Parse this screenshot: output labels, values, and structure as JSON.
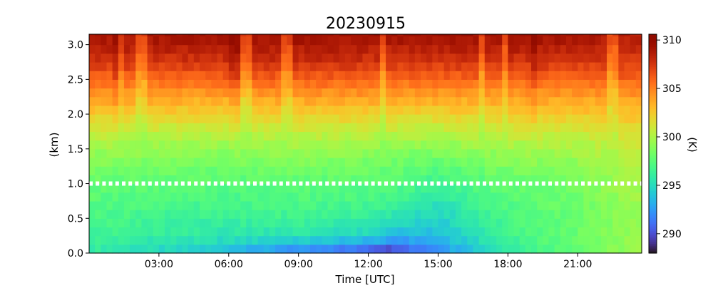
{
  "chart_data": {
    "type": "heatmap",
    "title": "20230915",
    "xlabel": "Time [UTC]",
    "ylabel": "(km)",
    "colorbar_label": "(K)",
    "colormap": "turbo",
    "x_range_hours": [
      0.0,
      23.75
    ],
    "x_ticks": [
      {
        "hour": 3,
        "label": "03:00"
      },
      {
        "hour": 6,
        "label": "06:00"
      },
      {
        "hour": 9,
        "label": "09:00"
      },
      {
        "hour": 12,
        "label": "12:00"
      },
      {
        "hour": 15,
        "label": "15:00"
      },
      {
        "hour": 18,
        "label": "18:00"
      },
      {
        "hour": 21,
        "label": "21:00"
      }
    ],
    "ylim": [
      0.0,
      3.15
    ],
    "y_ticks": [
      {
        "value": 0.0,
        "label": "0.0"
      },
      {
        "value": 0.5,
        "label": "0.5"
      },
      {
        "value": 1.0,
        "label": "1.0"
      },
      {
        "value": 1.5,
        "label": "1.5"
      },
      {
        "value": 2.0,
        "label": "2.0"
      },
      {
        "value": 2.5,
        "label": "2.5"
      },
      {
        "value": 3.0,
        "label": "3.0"
      }
    ],
    "color_range_K": [
      288,
      310.6
    ],
    "colorbar_ticks": [
      {
        "value": 290,
        "label": "290"
      },
      {
        "value": 295,
        "label": "295"
      },
      {
        "value": 300,
        "label": "300"
      },
      {
        "value": 305,
        "label": "305"
      },
      {
        "value": 310,
        "label": "310"
      }
    ],
    "reference_line": {
      "height_km": 1.0,
      "style": "dotted",
      "color": "#ffffff"
    },
    "profile_levels_km": [
      0.0,
      0.25,
      0.5,
      0.75,
      1.0,
      1.25,
      1.5,
      1.75,
      2.0,
      2.25,
      2.5,
      2.75,
      3.0
    ],
    "profiles_K": [
      {
        "hour": 0,
        "values": [
          296.0,
          296.5,
          297.0,
          297.4,
          297.8,
          298.5,
          299.5,
          300.8,
          302.3,
          304.0,
          305.8,
          307.5,
          308.5
        ]
      },
      {
        "hour": 3,
        "values": [
          294.5,
          296.0,
          296.5,
          297.0,
          297.6,
          298.3,
          299.3,
          300.6,
          302.2,
          303.8,
          305.7,
          307.5,
          308.6
        ]
      },
      {
        "hour": 6,
        "values": [
          293.5,
          295.5,
          296.2,
          296.8,
          297.4,
          298.2,
          299.2,
          300.6,
          302.0,
          303.8,
          305.8,
          307.6,
          308.7
        ]
      },
      {
        "hour": 9,
        "values": [
          291.0,
          295.5,
          296.5,
          297.0,
          297.6,
          298.4,
          299.4,
          300.8,
          302.2,
          304.0,
          306.0,
          307.8,
          308.8
        ]
      },
      {
        "hour": 12,
        "values": [
          290.0,
          294.5,
          296.0,
          296.8,
          297.5,
          298.2,
          299.2,
          300.6,
          302.2,
          304.0,
          305.9,
          307.6,
          308.7
        ]
      },
      {
        "hour": 13,
        "values": [
          289.0,
          293.5,
          295.5,
          296.5,
          297.3,
          298.0,
          299.0,
          300.5,
          302.0,
          303.8,
          305.7,
          307.4,
          308.6
        ]
      },
      {
        "hour": 15,
        "values": [
          292.0,
          293.5,
          294.5,
          295.5,
          296.5,
          297.5,
          298.8,
          300.3,
          302.0,
          303.8,
          305.7,
          307.5,
          308.7
        ]
      },
      {
        "hour": 18,
        "values": [
          296.0,
          296.5,
          297.0,
          297.3,
          297.8,
          298.6,
          299.6,
          300.9,
          302.3,
          304.0,
          305.8,
          307.6,
          308.7
        ]
      },
      {
        "hour": 21,
        "values": [
          298.0,
          298.0,
          298.0,
          298.2,
          298.5,
          299.0,
          299.8,
          301.0,
          302.4,
          304.0,
          305.8,
          307.5,
          308.6
        ]
      },
      {
        "hour": 23.75,
        "values": [
          299.5,
          299.5,
          299.5,
          299.6,
          299.8,
          300.2,
          300.8,
          301.6,
          302.8,
          304.2,
          305.8,
          307.3,
          308.0
        ]
      }
    ],
    "warm_columns_hours": [
      1.4,
      2.3,
      6.8,
      8.5,
      12.6,
      16.9,
      17.9,
      22.5
    ],
    "cold_columns_hours": [
      1.2,
      6.2,
      19.1
    ]
  }
}
